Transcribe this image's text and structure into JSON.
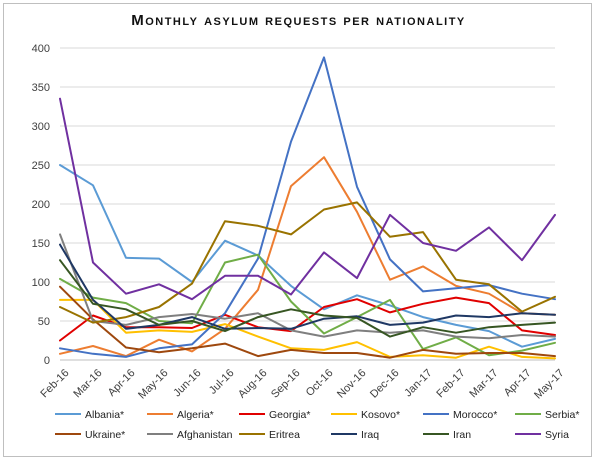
{
  "chart_data": {
    "type": "line",
    "title": "Monthly asylum requests per nationality",
    "xlabel": "",
    "ylabel": "",
    "ylim": [
      0,
      400
    ],
    "yticks": [
      "0",
      "50",
      "100",
      "150",
      "200",
      "250",
      "300",
      "350",
      "400"
    ],
    "categories": [
      "Feb-16",
      "Mar-16",
      "Apr-16",
      "May-16",
      "Jun-16",
      "Jul-16",
      "Aug-16",
      "Sep-16",
      "Oct-16",
      "Nov-16",
      "Dec-16",
      "Jan-17",
      "Feb-17",
      "Mar-17",
      "Apr-17",
      "May-17"
    ],
    "grid": true,
    "legend_position": "bottom",
    "series": [
      {
        "name": "Albania*",
        "color": "#5b9bd5",
        "values": [
          250,
          224,
          131,
          130,
          100,
          153,
          134,
          95,
          65,
          83,
          70,
          55,
          45,
          37,
          17,
          27
        ]
      },
      {
        "name": "Algeria*",
        "color": "#ed7d31",
        "values": [
          8,
          18,
          5,
          26,
          11,
          40,
          90,
          223,
          260,
          190,
          103,
          120,
          95,
          85,
          60,
          58
        ]
      },
      {
        "name": "Georgia*",
        "color": "#e00000",
        "values": [
          25,
          57,
          42,
          42,
          41,
          58,
          42,
          37,
          68,
          78,
          61,
          72,
          80,
          73,
          38,
          32
        ]
      },
      {
        "name": "Kosovo*",
        "color": "#ffc000",
        "values": [
          77,
          77,
          35,
          38,
          36,
          46,
          30,
          15,
          13,
          23,
          4,
          6,
          3,
          17,
          4,
          2
        ]
      },
      {
        "name": "Morocco*",
        "color": "#4472c4",
        "values": [
          15,
          8,
          4,
          15,
          20,
          60,
          130,
          280,
          388,
          222,
          129,
          88,
          92,
          96,
          85,
          78
        ]
      },
      {
        "name": "Serbia*",
        "color": "#70ad47",
        "values": [
          104,
          80,
          73,
          50,
          47,
          125,
          135,
          75,
          34,
          55,
          77,
          14,
          29,
          6,
          12,
          22
        ]
      },
      {
        "name": "Ukraine*",
        "color": "#9e480e",
        "values": [
          94,
          52,
          16,
          10,
          15,
          21,
          5,
          13,
          9,
          9,
          3,
          13,
          8,
          9,
          9,
          5
        ]
      },
      {
        "name": "Afghanistan",
        "color": "#7f7f7f",
        "values": [
          161,
          50,
          45,
          55,
          59,
          53,
          60,
          38,
          30,
          38,
          35,
          38,
          30,
          28,
          32,
          30
        ]
      },
      {
        "name": "Eritrea",
        "color": "#997300",
        "values": [
          68,
          48,
          55,
          68,
          98,
          178,
          172,
          161,
          193,
          202,
          158,
          164,
          103,
          97,
          62,
          81
        ]
      },
      {
        "name": "Iraq",
        "color": "#1f3864",
        "values": [
          148,
          77,
          40,
          45,
          55,
          40,
          41,
          40,
          53,
          56,
          45,
          48,
          57,
          55,
          60,
          58
        ]
      },
      {
        "name": "Iran",
        "color": "#375623",
        "values": [
          128,
          72,
          65,
          45,
          50,
          37,
          55,
          65,
          57,
          54,
          30,
          42,
          35,
          42,
          45,
          48
        ]
      },
      {
        "name": "Syria",
        "color": "#7030a0",
        "values": [
          335,
          125,
          85,
          97,
          78,
          108,
          108,
          84,
          138,
          105,
          186,
          150,
          140,
          170,
          128,
          186
        ]
      }
    ]
  }
}
